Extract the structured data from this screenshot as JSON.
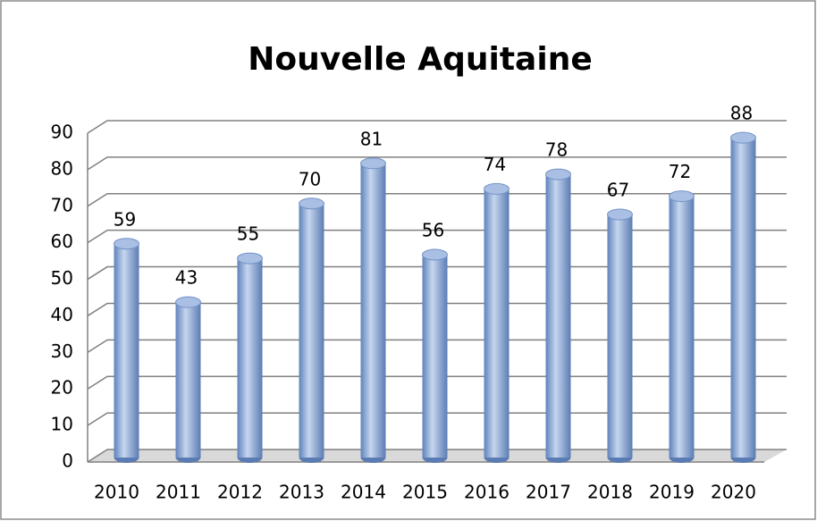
{
  "chart_data": {
    "type": "bar",
    "title": "Nouvelle Aquitaine",
    "categories": [
      "2010",
      "2011",
      "2012",
      "2013",
      "2014",
      "2015",
      "2016",
      "2017",
      "2018",
      "2019",
      "2020"
    ],
    "values": [
      59,
      43,
      55,
      70,
      81,
      56,
      74,
      78,
      67,
      72,
      88
    ],
    "color": "#8eaad8",
    "ylim": [
      0,
      90
    ],
    "yticks": [
      0,
      10,
      20,
      30,
      40,
      50,
      60,
      70,
      80,
      90
    ],
    "grid": true
  }
}
